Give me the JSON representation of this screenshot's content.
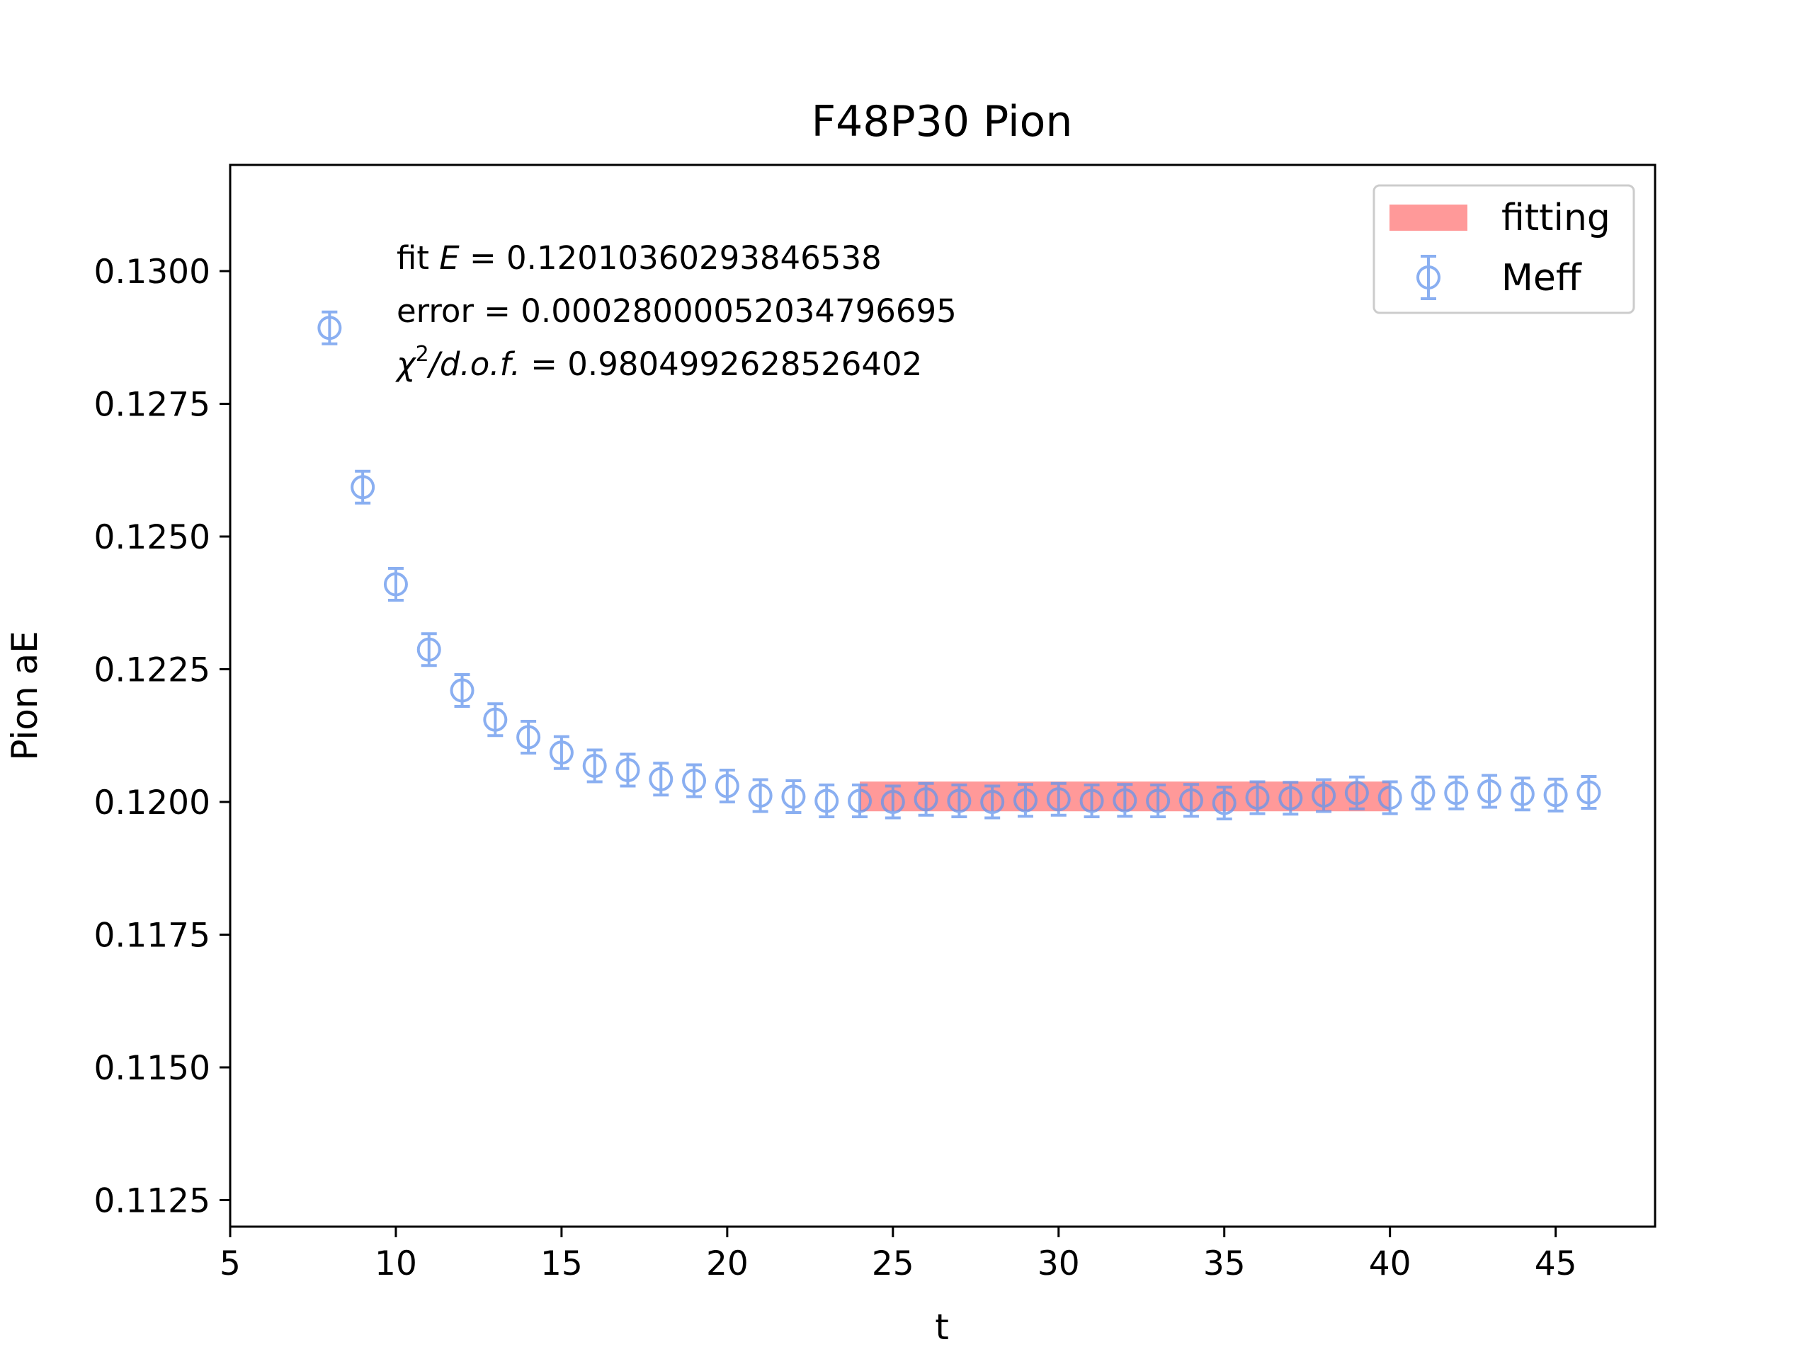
{
  "chart_data": {
    "type": "scatter",
    "title": "F48P30 Pion",
    "xlabel": "t",
    "ylabel": "Pion aE",
    "xlim": [
      5,
      48
    ],
    "ylim": [
      0.112,
      0.132
    ],
    "xticks": [
      5,
      10,
      15,
      20,
      25,
      30,
      35,
      40,
      45
    ],
    "yticks": [
      0.1125,
      0.115,
      0.1175,
      0.12,
      0.1225,
      0.125,
      0.1275,
      0.13
    ],
    "ytick_labels": [
      "0.1125",
      "0.1150",
      "0.1175",
      "0.1200",
      "0.1225",
      "0.1250",
      "0.1275",
      "0.1300"
    ],
    "grid": false,
    "legend_position": "top-right",
    "colors": {
      "meff": "#6495ed",
      "fitting": "#ff8080"
    },
    "fit_band": {
      "name": "fitting",
      "x_range": [
        24,
        40
      ],
      "center": 0.120104,
      "error": 0.00028
    },
    "series": [
      {
        "name": "Meff",
        "x": [
          8,
          9,
          10,
          11,
          12,
          13,
          14,
          15,
          16,
          17,
          18,
          19,
          20,
          21,
          22,
          23,
          24,
          25,
          26,
          27,
          28,
          29,
          30,
          31,
          32,
          33,
          34,
          35,
          36,
          37,
          38,
          39,
          40,
          41,
          42,
          43,
          44,
          45,
          46
        ],
        "y": [
          0.12893,
          0.12593,
          0.1241,
          0.12287,
          0.1221,
          0.12155,
          0.12122,
          0.12093,
          0.12068,
          0.1206,
          0.12043,
          0.1204,
          0.1203,
          0.12012,
          0.1201,
          0.12002,
          0.12002,
          0.12,
          0.12005,
          0.12002,
          0.12,
          0.12003,
          0.12005,
          0.12002,
          0.12003,
          0.12002,
          0.12003,
          0.11998,
          0.12008,
          0.12007,
          0.12012,
          0.12017,
          0.12008,
          0.12017,
          0.12017,
          0.1202,
          0.12015,
          0.12013,
          0.12018
        ],
        "err": [
          0.0003,
          0.0003,
          0.0003,
          0.0003,
          0.0003,
          0.0003,
          0.0003,
          0.0003,
          0.0003,
          0.0003,
          0.0003,
          0.0003,
          0.0003,
          0.0003,
          0.0003,
          0.0003,
          0.0003,
          0.0003,
          0.0003,
          0.0003,
          0.0003,
          0.0003,
          0.0003,
          0.0003,
          0.0003,
          0.0003,
          0.0003,
          0.0003,
          0.0003,
          0.0003,
          0.0003,
          0.0003,
          0.0003,
          0.0003,
          0.0003,
          0.0003,
          0.0003,
          0.0003,
          0.0003
        ]
      }
    ],
    "annotations": {
      "fit_line_prefix": "fit ",
      "fit_line_symbol": "E",
      "fit_line_value": " = 0.12010360293846538",
      "error_line": "error = 0.00028000052034796695",
      "chi_symbol": "χ",
      "chi_sup": "2",
      "chi_rest": "/d.o.f.",
      "chi_value": " = 0.9804992628526402"
    }
  }
}
